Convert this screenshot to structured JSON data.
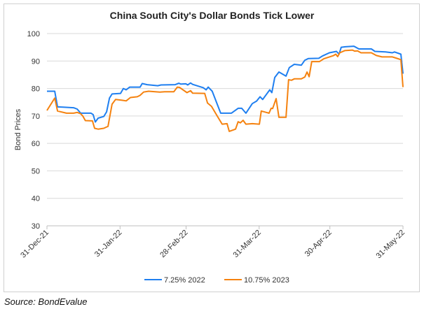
{
  "chart_data": {
    "type": "line",
    "title": "China South City's Dollar Bonds Tick Lower",
    "xlabel": "",
    "ylabel": "Bond Prices",
    "x_unit": "days since 31-Dec-21",
    "xlim": [
      0,
      151
    ],
    "ylim": [
      30,
      100
    ],
    "yticks": [
      30,
      40,
      50,
      60,
      70,
      80,
      90,
      100
    ],
    "xticks": [
      {
        "day": 0,
        "label": "31-Dec-21"
      },
      {
        "day": 31,
        "label": "31-Jan-22"
      },
      {
        "day": 59,
        "label": "28-Feb-22"
      },
      {
        "day": 90,
        "label": "31-Mar-22"
      },
      {
        "day": 120,
        "label": "30-Apr-22"
      },
      {
        "day": 151,
        "label": "31-May-22"
      }
    ],
    "grid": true,
    "legend": "bottom",
    "series": [
      {
        "name": "7.25% 2022",
        "color": "#1f7ff0",
        "x": [
          0,
          3.3,
          4.5,
          6.8,
          11.3,
          12.8,
          14.3,
          18.7,
          19.6,
          20.5,
          21.7,
          24.1,
          25.3,
          26.5,
          27.6,
          31.2,
          32.4,
          33.6,
          35.1,
          39.5,
          40.4,
          42.5,
          47,
          48.4,
          54.4,
          55.9,
          56.8,
          58.9,
          59.7,
          60.9,
          61.8,
          66.3,
          67.5,
          68.4,
          70.1,
          73.7,
          78.2,
          81.1,
          82.6,
          84.4,
          87.1,
          88.9,
          90.4,
          91.5,
          94.5,
          95.4,
          96.6,
          98.4,
          101.4,
          102.8,
          104.9,
          107.9,
          109.4,
          110.9,
          115.3,
          116.8,
          119.8,
          122.8,
          123.9,
          124.8,
          126.6,
          130.2,
          132.3,
          137.6,
          139.1,
          143.6,
          146.5,
          147.4,
          150.1,
          151
        ],
        "values": [
          79,
          79,
          73.3,
          73.2,
          73,
          72.5,
          71,
          71,
          70.5,
          67.8,
          69.2,
          69.8,
          71.5,
          76.5,
          78,
          78.2,
          80,
          79.5,
          80.5,
          80.5,
          81.8,
          81.4,
          81,
          81.3,
          81.4,
          81.9,
          81.6,
          81.7,
          81.3,
          82,
          81.5,
          80.3,
          79.5,
          80.5,
          79,
          71,
          71,
          72.8,
          72.8,
          71,
          74.5,
          75.4,
          77,
          76,
          79.5,
          78.5,
          84,
          86,
          84.5,
          87.6,
          88.8,
          88.5,
          90.3,
          90.9,
          91,
          91.8,
          93,
          93.5,
          92.5,
          95,
          95.2,
          95.4,
          94.4,
          94.4,
          93.5,
          93.3,
          93,
          93.3,
          92.5,
          85.4
        ]
      },
      {
        "name": "10.75% 2023",
        "color": "#f5820f",
        "x": [
          0,
          3.3,
          4.5,
          8.3,
          11.3,
          12.8,
          14.3,
          15.2,
          16.3,
          19.3,
          20.2,
          21.7,
          24.1,
          25.3,
          25.9,
          26.7,
          27.6,
          29.1,
          32.1,
          33.6,
          35.4,
          38.3,
          39.5,
          41,
          43.1,
          47.9,
          49.9,
          53.8,
          55.3,
          56.2,
          59.4,
          60.9,
          61.8,
          66.9,
          68.1,
          69.8,
          72.2,
          74.3,
          76.4,
          77.3,
          80,
          81.1,
          82,
          83.2,
          84.4,
          87.1,
          90.1,
          90.9,
          94.2,
          95.1,
          95.7,
          97.2,
          98.4,
          101.4,
          102.5,
          103.7,
          104.9,
          107.9,
          109.4,
          110.3,
          111.2,
          112.3,
          115.6,
          117.4,
          121.6,
          122.5,
          123.3,
          124.2,
          126.3,
          129.6,
          130.5,
          131.7,
          133.2,
          137.6,
          139.7,
          142.1,
          146.5,
          148,
          150.1,
          151
        ],
        "values": [
          72,
          76.5,
          71.8,
          71,
          71,
          71.3,
          70.8,
          70,
          68.3,
          68.2,
          65.5,
          65.2,
          65.5,
          66,
          66.2,
          70,
          74.3,
          76,
          75.7,
          75.5,
          76.7,
          77,
          77.5,
          78.7,
          79,
          78.7,
          78.8,
          78.8,
          80.5,
          80.4,
          78.5,
          79.2,
          78.3,
          78.2,
          74.7,
          73.5,
          70,
          67,
          67.2,
          64.4,
          65.2,
          67.9,
          67.5,
          68.4,
          67,
          67.2,
          67,
          71.8,
          71,
          72.8,
          72.7,
          76.3,
          69.5,
          69.5,
          83.2,
          83,
          83.5,
          83.5,
          84.2,
          86,
          84.3,
          89.8,
          89.8,
          90.8,
          92,
          92.5,
          91.6,
          93,
          93.8,
          94,
          93.6,
          93.7,
          93,
          93,
          92,
          91.5,
          91.5,
          91.1,
          90.5,
          80.5
        ]
      }
    ],
    "source": "Source: BondEvalue"
  }
}
